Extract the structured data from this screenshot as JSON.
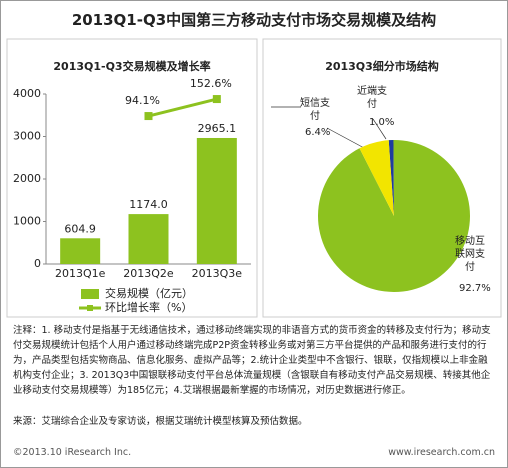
{
  "title": "2013Q1-Q3中国第三方移动支付市场交易规模及结构",
  "chart_data": [
    {
      "type": "bar",
      "title": "2013Q1-Q3交易规模及增长率",
      "categories": [
        "2013Q1e",
        "2013Q2e",
        "2013Q3e"
      ],
      "series": [
        {
          "name": "交易规模（亿元）",
          "type": "bar",
          "color": "#8dc21f",
          "values": [
            604.9,
            1174.0,
            2965.1
          ],
          "value_labels": [
            "604.9",
            "1174.0",
            "2965.1"
          ]
        },
        {
          "name": "环比增长率（%）",
          "type": "line",
          "axis": "y2",
          "color": "#8dc21f",
          "values": [
            null,
            94.1,
            152.6
          ],
          "value_labels": [
            null,
            "94.1%",
            "152.6%"
          ]
        }
      ],
      "ylim": [
        0,
        4000
      ],
      "yticks": [
        0,
        1000,
        2000,
        3000,
        4000
      ],
      "y2lim": [
        -415,
        170
      ],
      "legend": "bottom",
      "grid": false
    },
    {
      "type": "pie",
      "title": "2013Q3细分市场结构",
      "categories": [
        "近端支付",
        "移动互联网支付",
        "短信支付"
      ],
      "values": [
        1.0,
        92.7,
        6.4
      ],
      "value_labels": [
        "1.0%",
        "92.7%",
        "6.4%"
      ],
      "colors": [
        "#1f3c9f",
        "#8dc21f",
        "#f2e500"
      ]
    }
  ],
  "notes": "注释：1. 移动支付是指基于无线通信技术，通过移动终端实现的非语音方式的货币资金的转移及支付行为；移动支付交易规模统计包括个人用户通过移动终端完成P2P资金转移业务或对第三方平台提供的产品和服务进行支付的行为，产品类型包括实物商品、信息化服务、虚拟产品等；2.统计企业类型中不含银行、银联，仅指规模以上非金融机构支付企业；3. 2013Q3中国银联移动支付平台总体流量规模（含银联自有移动支付产品交易规模、转接其他企业移动支付交易规模等）为185亿元；4.艾瑞根据最新掌握的市场情况，对历史数据进行修正。",
  "source": "来源：艾瑞综合企业及专家访谈，根据艾瑞统计模型核算及预估数据。",
  "copyright": "©2013.10 iResearch Inc.",
  "url": "www.iresearch.com.cn"
}
